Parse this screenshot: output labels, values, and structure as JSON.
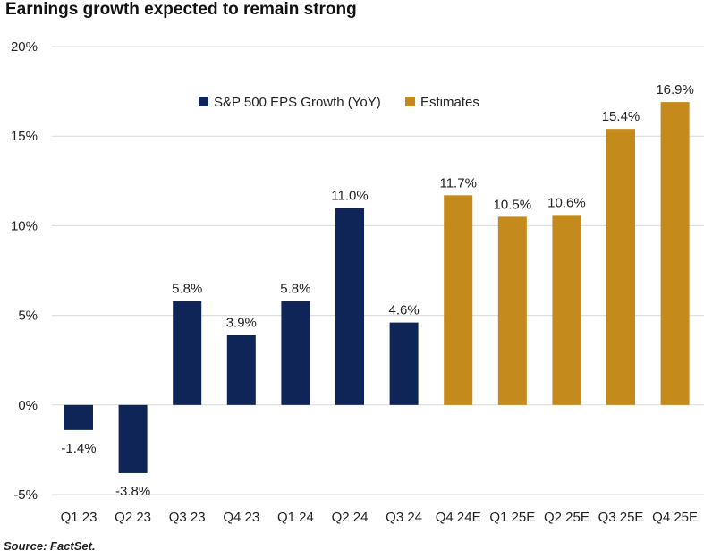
{
  "title": "Earnings growth expected to remain strong",
  "source": "Source: FactSet.",
  "chart_data": {
    "type": "bar",
    "categories": [
      "Q1 23",
      "Q2 23",
      "Q3 23",
      "Q4 23",
      "Q1 24",
      "Q2 24",
      "Q3 24",
      "Q4 24E",
      "Q1 25E",
      "Q2 25E",
      "Q3 25E",
      "Q4 25E"
    ],
    "values": [
      -1.4,
      -3.8,
      5.8,
      3.9,
      5.8,
      11.0,
      4.6,
      11.7,
      10.5,
      10.6,
      15.4,
      16.9
    ],
    "value_labels": [
      "-1.4%",
      "-3.8%",
      "5.8%",
      "3.9%",
      "5.8%",
      "11.0%",
      "4.6%",
      "11.7%",
      "10.5%",
      "10.6%",
      "15.4%",
      "16.9%"
    ],
    "series": [
      {
        "name": "S&P 500 EPS Growth (YoY)",
        "indices": [
          0,
          1,
          2,
          3,
          4,
          5,
          6
        ],
        "color": "#0f2557"
      },
      {
        "name": "Estimates",
        "indices": [
          7,
          8,
          9,
          10,
          11
        ],
        "color": "#c48a1c"
      }
    ],
    "ylim": [
      -5,
      20
    ],
    "yticks": [
      -5,
      0,
      5,
      10,
      15,
      20
    ],
    "ytick_labels": [
      "-5%",
      "0%",
      "5%",
      "10%",
      "15%",
      "20%"
    ],
    "grid": true,
    "legend_position": "top-left"
  }
}
